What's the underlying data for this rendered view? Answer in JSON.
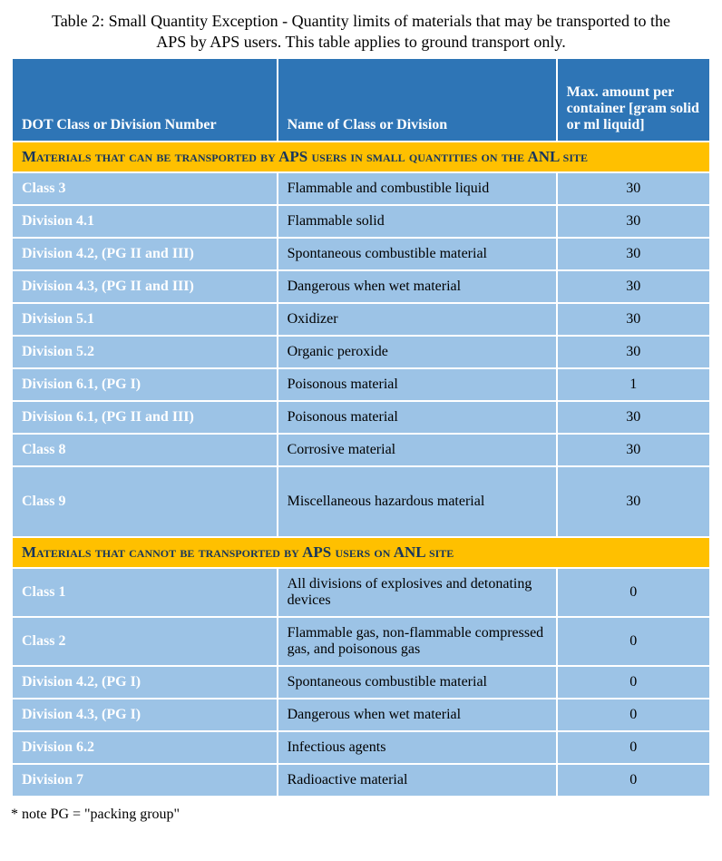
{
  "caption": "Table 2: Small Quantity Exception - Quantity limits of materials that may be transported to the APS by APS users. This table applies to ground transport only.",
  "colors": {
    "header_bg": "#2e75b6",
    "header_text": "#ffffff",
    "section_bg": "#ffc000",
    "section_text": "#17365d",
    "row_bg": "#9cc3e6",
    "class_text": "#ffffff",
    "body_text": "#000000",
    "border": "#ffffff",
    "page_bg": "#ffffff"
  },
  "columns": [
    {
      "label": "DOT Class or Division Number",
      "width_pct": 38,
      "align": "left"
    },
    {
      "label": "Name of Class or Division",
      "width_pct": 40,
      "align": "left"
    },
    {
      "label": "Max. amount per container [gram solid or ml liquid]",
      "width_pct": 22,
      "align": "center"
    }
  ],
  "sections": [
    {
      "title": "Materials that can be transported by APS users in small quantities on the ANL site",
      "rows": [
        {
          "class": "Class 3",
          "name": "Flammable and combustible liquid",
          "amount": 30
        },
        {
          "class": "Division 4.1",
          "name": "Flammable solid",
          "amount": 30
        },
        {
          "class": "Division 4.2, (PG II and III)",
          "name": "Spontaneous combustible material",
          "amount": 30
        },
        {
          "class": "Division 4.3, (PG II and III)",
          "name": "Dangerous when wet material",
          "amount": 30
        },
        {
          "class": "Division 5.1",
          "name": "Oxidizer",
          "amount": 30
        },
        {
          "class": "Division 5.2",
          "name": "Organic peroxide",
          "amount": 30
        },
        {
          "class": "Division 6.1, (PG I)",
          "name": "Poisonous material",
          "amount": 1
        },
        {
          "class": "Division 6.1, (PG II and III)",
          "name": "Poisonous material",
          "amount": 30
        },
        {
          "class": "Class 8",
          "name": "Corrosive material",
          "amount": 30
        },
        {
          "class": "Class 9",
          "name": "Miscellaneous hazardous material",
          "amount": 30,
          "tall": true
        }
      ]
    },
    {
      "title": "Materials that cannot be transported by APS users on ANL site",
      "rows": [
        {
          "class": "Class 1",
          "name": "All divisions of explosives and detonating devices",
          "amount": 0
        },
        {
          "class": "Class 2",
          "name": "Flammable gas, non-flammable compressed gas, and poisonous gas",
          "amount": 0
        },
        {
          "class": "Division 4.2, (PG I)",
          "name": "Spontaneous combustible material",
          "amount": 0
        },
        {
          "class": "Division 4.3, (PG I)",
          "name": "Dangerous when wet material",
          "amount": 0
        },
        {
          "class": "Division 6.2",
          "name": "Infectious agents",
          "amount": 0
        },
        {
          "class": "Division 7",
          "name": "Radioactive material",
          "amount": 0
        }
      ]
    }
  ],
  "footnote": "* note PG = \"packing group\""
}
